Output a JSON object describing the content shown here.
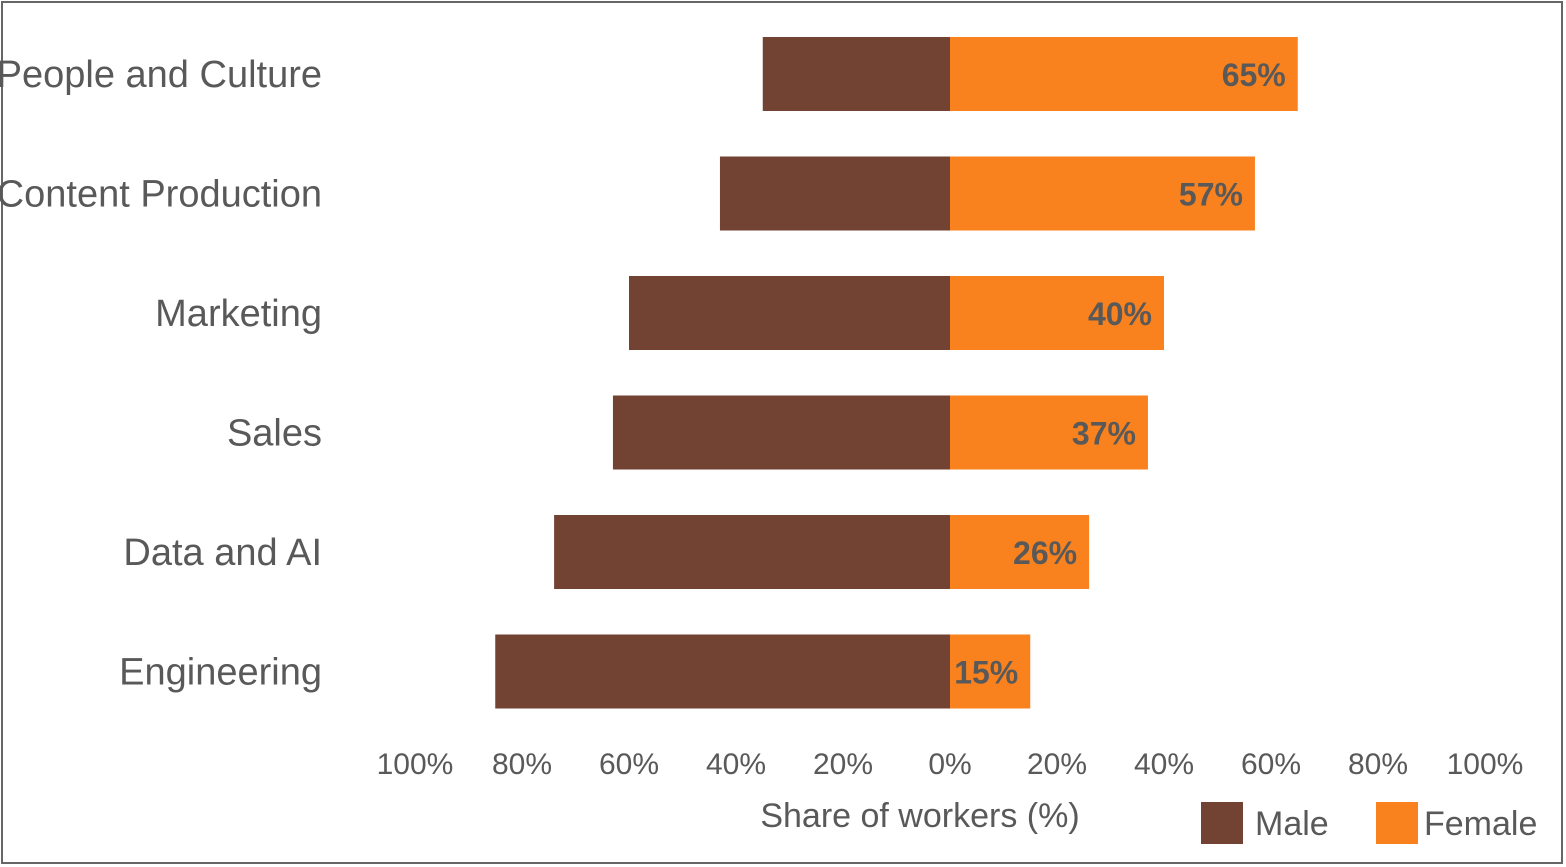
{
  "chart_data": {
    "type": "bar",
    "orientation": "horizontal-diverging",
    "categories": [
      "People and Culture",
      "Content Production",
      "Marketing",
      "Sales",
      "Data and AI",
      "Engineering"
    ],
    "series": [
      {
        "name": "Male",
        "values": [
          35,
          43,
          60,
          63,
          74,
          85
        ]
      },
      {
        "name": "Female",
        "values": [
          65,
          57,
          40,
          37,
          26,
          15
        ]
      }
    ],
    "data_labels": [
      "65%",
      "57%",
      "40%",
      "37%",
      "26%",
      "15%"
    ],
    "x_ticks": [
      "100%",
      "80%",
      "60%",
      "40%",
      "20%",
      "0%",
      "20%",
      "40%",
      "60%",
      "80%",
      "100%"
    ],
    "xlabel": "Share of workers (%)",
    "xlim": [
      -100,
      100
    ],
    "grid": false,
    "legend_position": "bottom-right",
    "colors": {
      "Male": "#724232",
      "Female": "#fa821e"
    }
  }
}
